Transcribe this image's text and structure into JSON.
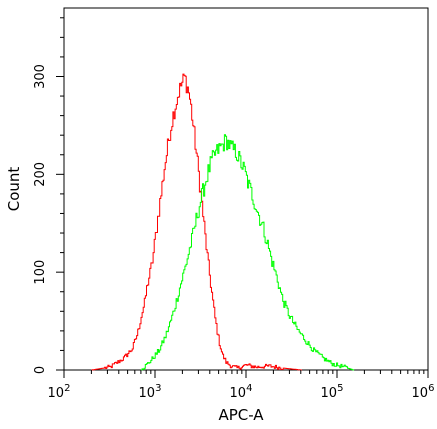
{
  "chart_data": {
    "type": "line",
    "xlabel": "APC-A",
    "ylabel": "Count",
    "x_scale": "log",
    "xlim": [
      100,
      1000000
    ],
    "ylim": [
      0,
      370
    ],
    "x_ticks": [
      {
        "value": 100,
        "base": "10",
        "exp": "2"
      },
      {
        "value": 1000,
        "base": "10",
        "exp": "3"
      },
      {
        "value": 10000,
        "base": "10",
        "exp": "4"
      },
      {
        "value": 100000,
        "base": "10",
        "exp": "5"
      },
      {
        "value": 1000000,
        "base": "10",
        "exp": "6"
      }
    ],
    "y_ticks": [
      0,
      100,
      200,
      300
    ],
    "series": [
      {
        "color": "#ff0000",
        "x": [
          200,
          320,
          450,
          560,
          640,
          700,
          760,
          820,
          880,
          940,
          1000,
          1080,
          1160,
          1250,
          1340,
          1440,
          1550,
          1660,
          1780,
          1900,
          2000,
          2100,
          2200,
          2320,
          2450,
          2600,
          2800,
          3000,
          3250,
          3500,
          3800,
          4100,
          4500,
          5000,
          5500,
          6000,
          6800,
          8000,
          10000,
          13000,
          18000,
          25000,
          40000
        ],
        "y": [
          0,
          3,
          12,
          22,
          38,
          55,
          68,
          88,
          100,
          115,
          135,
          160,
          180,
          205,
          222,
          242,
          258,
          270,
          282,
          290,
          295,
          300,
          292,
          285,
          270,
          250,
          225,
          200,
          170,
          140,
          110,
          85,
          55,
          30,
          15,
          8,
          4,
          2,
          5,
          3,
          4,
          2,
          0
        ]
      },
      {
        "color": "#00ff00",
        "x": [
          700,
          900,
          1100,
          1300,
          1500,
          1700,
          1900,
          2100,
          2300,
          2500,
          2700,
          2900,
          3200,
          3500,
          3800,
          4100,
          4500,
          5000,
          5500,
          6000,
          6500,
          7000,
          7800,
          8500,
          9500,
          10500,
          12000,
          13500,
          15000,
          17000,
          19000,
          22000,
          25000,
          30000,
          36000,
          45000,
          55000,
          70000,
          90000,
          120000,
          150000
        ],
        "y": [
          0,
          10,
          20,
          35,
          52,
          70,
          88,
          103,
          118,
          132,
          146,
          160,
          176,
          190,
          202,
          212,
          220,
          226,
          230,
          235,
          230,
          226,
          222,
          214,
          204,
          190,
          175,
          160,
          148,
          130,
          112,
          92,
          72,
          55,
          42,
          30,
          20,
          12,
          6,
          3,
          0
        ]
      }
    ]
  }
}
